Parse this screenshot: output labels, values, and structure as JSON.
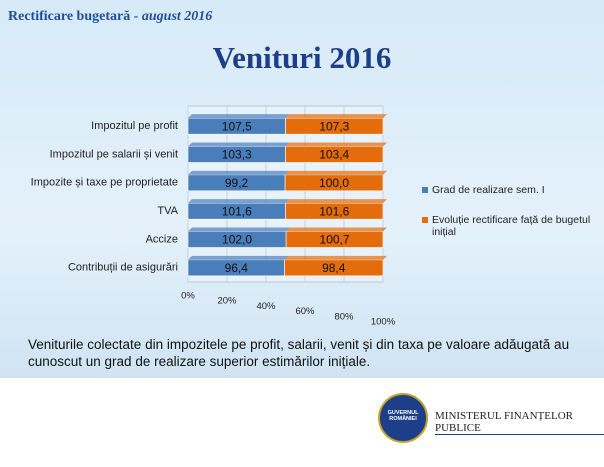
{
  "header": {
    "title": "Rectificare bugetară",
    "subtitle": " - august 2016"
  },
  "chart_data": {
    "type": "bar",
    "orientation": "horizontal",
    "stacking": "percent",
    "title": "Venituri 2016",
    "categories": [
      "Impozitul pe profit",
      "Impozitul pe salarii și venit",
      "Impozite și taxe pe proprietate",
      "TVA",
      "Accize",
      "Contribuții de asigurări"
    ],
    "series": [
      {
        "name": "Grad de realizare sem. I",
        "color": "#4a7ebb",
        "values": [
          107.5,
          103.3,
          99.2,
          101.6,
          102.0,
          96.4
        ],
        "value_labels": [
          "107,5",
          "103,3",
          "99,2",
          "101,6",
          "102,0",
          "96,4"
        ]
      },
      {
        "name": "Evoluție rectificare față de bugetul inițial",
        "color": "#e46c0a",
        "values": [
          107.3,
          103.4,
          100.0,
          101.6,
          100.7,
          98.4
        ],
        "value_labels": [
          "107,3",
          "103,4",
          "100,0",
          "101,6",
          "100,7",
          "98,4"
        ]
      }
    ],
    "xlim": [
      0,
      100
    ],
    "xticks": [
      {
        "value": 0,
        "label": "0%"
      },
      {
        "value": 20,
        "label": "20%"
      },
      {
        "value": 40,
        "label": "40%"
      },
      {
        "value": 60,
        "label": "60%"
      },
      {
        "value": 80,
        "label": "80%"
      },
      {
        "value": 100,
        "label": "100%"
      }
    ],
    "grid": true,
    "legend": "right"
  },
  "footer": {
    "note": "Veniturile colectate din impozitele pe profit, salarii, venit și din taxa pe valoare adăugată au cunoscut un grad de realizare superior estimărilor inițiale.",
    "logo": [
      "GUVERNUL",
      "ROMÂNIEI"
    ],
    "ministry": "MINISTERUL FINANȚELOR PUBLICE"
  }
}
